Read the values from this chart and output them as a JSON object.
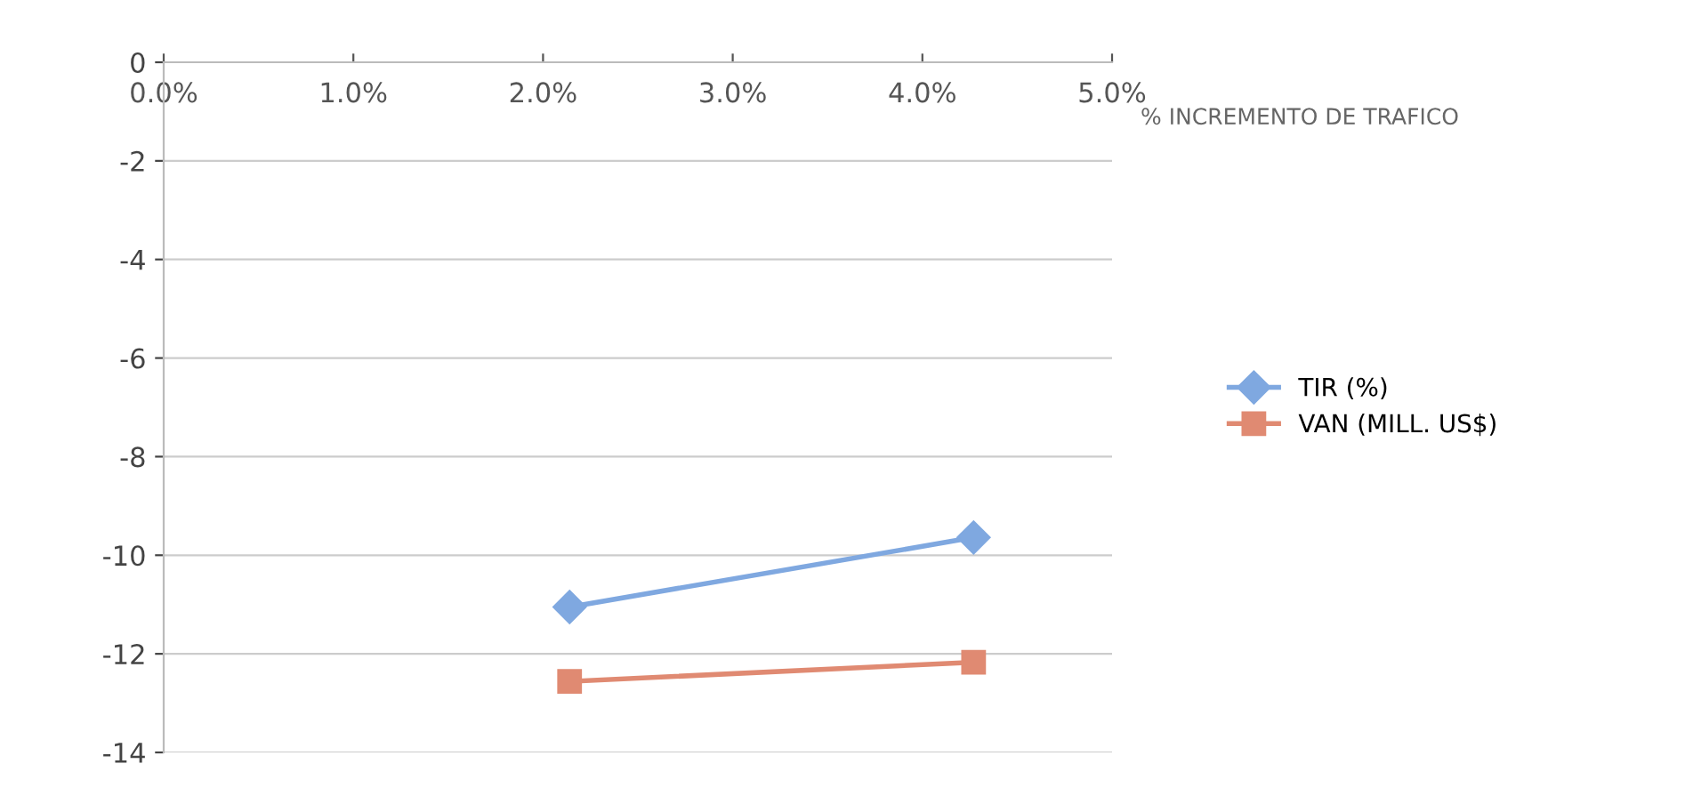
{
  "chart_data": {
    "type": "line",
    "xlabel": "% INCREMENTO DE TRAFICO",
    "xlim": [
      0,
      5
    ],
    "xticks": [
      {
        "value": 0,
        "label": "0.0%"
      },
      {
        "value": 1,
        "label": "1.0%"
      },
      {
        "value": 2,
        "label": "2.0%"
      },
      {
        "value": 3,
        "label": "3.0%"
      },
      {
        "value": 4,
        "label": "4.0%"
      },
      {
        "value": 5,
        "label": "5.0%"
      }
    ],
    "x": [
      2.14,
      4.27
    ],
    "ylim": [
      -14,
      0
    ],
    "yticks": [
      -14,
      -12,
      -10,
      -8,
      -6,
      -4,
      -2,
      0
    ],
    "grid": "y",
    "legend": "right",
    "series": [
      {
        "name": "TIR (%)",
        "color": "#7fa8e0",
        "marker": "diamond",
        "values": [
          -11.05,
          -9.64
        ]
      },
      {
        "name": "VAN (MILL. US$)",
        "color": "#e08a72",
        "marker": "square",
        "values": [
          -12.56,
          -12.17
        ]
      }
    ]
  }
}
